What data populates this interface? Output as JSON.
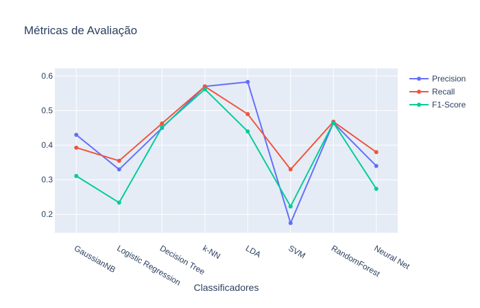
{
  "chart_data": {
    "type": "line",
    "title": "Métricas de Avaliação",
    "xlabel": "Classificadores",
    "ylabel": "",
    "categories": [
      "GaussianNB",
      "Logistic Regression",
      "Decision Tree",
      "k-NN",
      "LDA",
      "SVM",
      "RandomForest",
      "Neural Net"
    ],
    "ylim": [
      0.147,
      0.622
    ],
    "yticks": [
      "0.2",
      "0.3",
      "0.4",
      "0.5",
      "0.6"
    ],
    "grid": true,
    "legend_position": "top-right",
    "series": [
      {
        "name": "Precision",
        "color": "#636efa",
        "values": [
          0.43,
          0.33,
          0.45,
          0.57,
          0.583,
          0.175,
          0.465,
          0.34
        ]
      },
      {
        "name": "Recall",
        "color": "#ef553b",
        "values": [
          0.393,
          0.355,
          0.463,
          0.57,
          0.49,
          0.33,
          0.468,
          0.38
        ]
      },
      {
        "name": "F1-Score",
        "color": "#00cc96",
        "values": [
          0.311,
          0.234,
          0.452,
          0.562,
          0.44,
          0.223,
          0.465,
          0.274
        ]
      }
    ]
  }
}
